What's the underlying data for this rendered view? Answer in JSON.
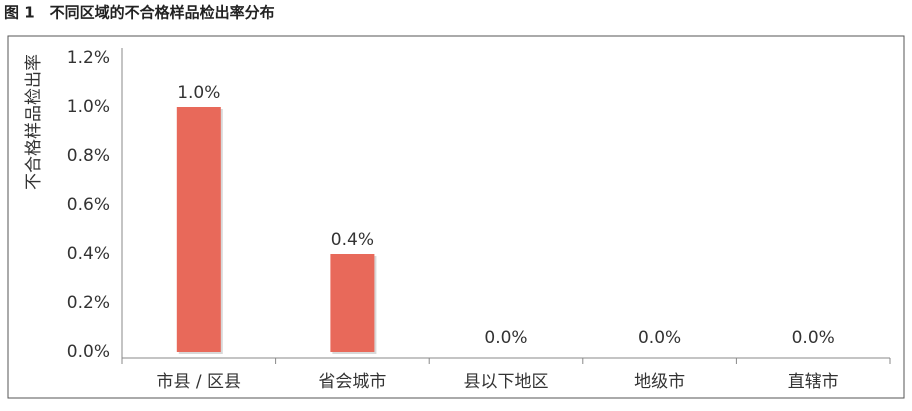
{
  "chart_data": {
    "type": "bar",
    "title": "图 1　不同区域的不合格样品检出率分布",
    "y_label": "不合格样品检出率",
    "categories": [
      "市县 / 区县",
      "省会城市",
      "县以下地区",
      "地级市",
      "直辖市"
    ],
    "values": [
      1.0,
      0.4,
      0,
      0,
      0
    ],
    "value_labels": [
      "1.0%",
      "0.4%",
      "0.0%",
      "0.0%",
      "0.0%"
    ],
    "color": "#e8695a",
    "ylim": [
      0,
      1.2
    ],
    "yticks": [
      {
        "value": 0,
        "label": "0.0%"
      },
      {
        "value": 0.2,
        "label": "0.2%"
      },
      {
        "value": 0.4,
        "label": "0.4%"
      },
      {
        "value": 0.6,
        "label": "0.6%"
      },
      {
        "value": 0.8,
        "label": "0.8%"
      },
      {
        "value": 1.0,
        "label": "1.0%"
      },
      {
        "value": 1.2,
        "label": "1.2%"
      }
    ],
    "grid": false
  }
}
